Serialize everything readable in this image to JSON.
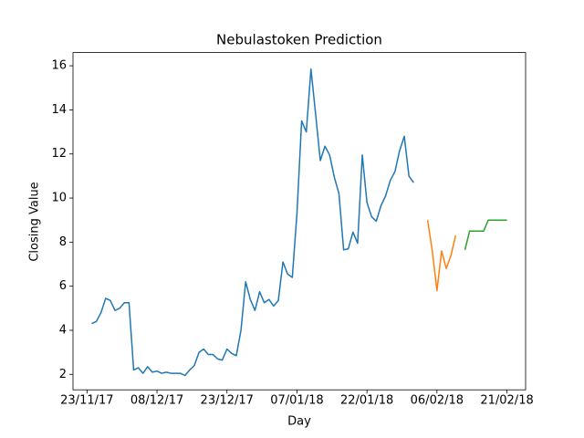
{
  "chart_data": {
    "type": "line",
    "title": "Nebulastoken Prediction",
    "x_label": "Day",
    "y_label": "Closing Value",
    "xlim": [
      "2017-11-20",
      "2018-02-25"
    ],
    "xticks": [
      {
        "value": "2017-11-23",
        "label": "23/11/17"
      },
      {
        "value": "2017-12-08",
        "label": "08/12/17"
      },
      {
        "value": "2017-12-23",
        "label": "23/12/17"
      },
      {
        "value": "2018-01-07",
        "label": "07/01/18"
      },
      {
        "value": "2018-01-22",
        "label": "22/01/18"
      },
      {
        "value": "2018-02-06",
        "label": "06/02/18"
      },
      {
        "value": "2018-02-21",
        "label": "21/02/18"
      }
    ],
    "ylim": [
      1.3,
      16.6
    ],
    "yticks": [
      2,
      4,
      6,
      8,
      10,
      12,
      14,
      16
    ],
    "series": [
      {
        "color": "#1f77b4",
        "x": [
          "2017-11-24",
          "2017-11-25",
          "2017-11-26",
          "2017-11-27",
          "2017-11-28",
          "2017-11-29",
          "2017-11-30",
          "2017-12-01",
          "2017-12-02",
          "2017-12-03",
          "2017-12-04",
          "2017-12-05",
          "2017-12-06",
          "2017-12-07",
          "2017-12-08",
          "2017-12-09",
          "2017-12-10",
          "2017-12-11",
          "2017-12-12",
          "2017-12-13",
          "2017-12-14",
          "2017-12-15",
          "2017-12-16",
          "2017-12-17",
          "2017-12-18",
          "2017-12-19",
          "2017-12-20",
          "2017-12-21",
          "2017-12-22",
          "2017-12-23",
          "2017-12-24",
          "2017-12-25",
          "2017-12-26",
          "2017-12-27",
          "2017-12-28",
          "2017-12-29",
          "2017-12-30",
          "2017-12-31",
          "2018-01-01",
          "2018-01-02",
          "2018-01-03",
          "2018-01-04",
          "2018-01-05",
          "2018-01-06",
          "2018-01-07",
          "2018-01-08",
          "2018-01-09",
          "2018-01-10",
          "2018-01-11",
          "2018-01-12",
          "2018-01-13",
          "2018-01-14",
          "2018-01-15",
          "2018-01-16",
          "2018-01-17",
          "2018-01-18",
          "2018-01-19",
          "2018-01-20",
          "2018-01-21",
          "2018-01-22",
          "2018-01-23",
          "2018-01-24",
          "2018-01-25",
          "2018-01-26",
          "2018-01-27",
          "2018-01-28",
          "2018-01-29",
          "2018-01-30",
          "2018-01-31",
          "2018-02-01"
        ],
        "values": [
          4.3,
          4.4,
          4.8,
          5.45,
          5.35,
          4.9,
          5.0,
          5.25,
          5.25,
          2.2,
          2.3,
          2.05,
          2.35,
          2.1,
          2.15,
          2.05,
          2.1,
          2.05,
          2.05,
          2.05,
          1.95,
          2.2,
          2.4,
          3.0,
          3.15,
          2.9,
          2.9,
          2.7,
          2.65,
          3.15,
          2.95,
          2.85,
          4.0,
          6.2,
          5.4,
          4.9,
          5.75,
          5.25,
          5.4,
          5.1,
          5.35,
          7.1,
          6.55,
          6.4,
          9.3,
          13.5,
          13.0,
          15.85,
          13.8,
          11.7,
          12.35,
          11.95,
          10.95,
          10.2,
          7.65,
          7.7,
          8.45,
          7.95,
          11.95,
          9.8,
          9.15,
          8.95,
          9.65,
          10.1,
          10.8,
          11.2,
          12.15,
          12.8,
          11.0,
          10.7
        ]
      },
      {
        "color": "#ff7f0e",
        "x": [
          "2018-02-04",
          "2018-02-05",
          "2018-02-06",
          "2018-02-07",
          "2018-02-08",
          "2018-02-09",
          "2018-02-10"
        ],
        "values": [
          9.0,
          7.6,
          5.8,
          7.6,
          6.8,
          7.4,
          8.3
        ]
      },
      {
        "color": "#2ca02c",
        "x": [
          "2018-02-12",
          "2018-02-13",
          "2018-02-14",
          "2018-02-15",
          "2018-02-16",
          "2018-02-17",
          "2018-02-18",
          "2018-02-19",
          "2018-02-20",
          "2018-02-21"
        ],
        "values": [
          7.65,
          8.5,
          8.5,
          8.5,
          8.5,
          9.0,
          9.0,
          9.0,
          9.0,
          9.0
        ]
      }
    ]
  }
}
